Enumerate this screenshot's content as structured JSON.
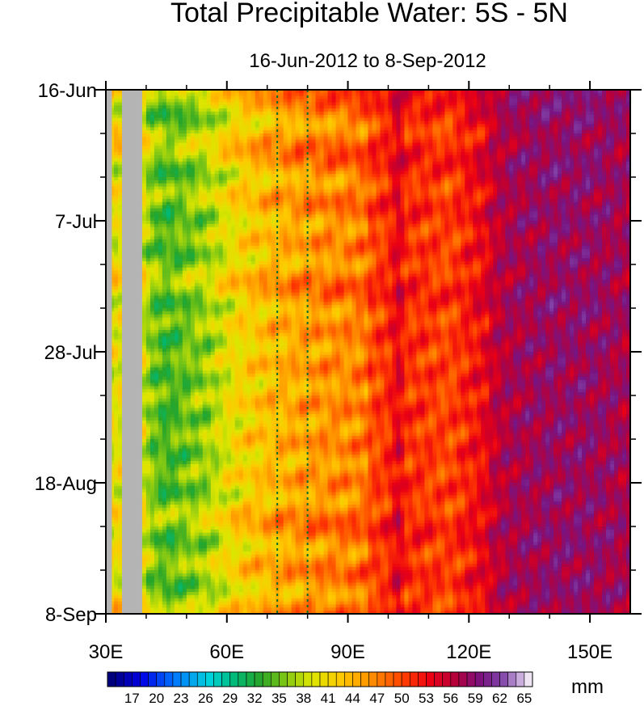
{
  "chart_data": {
    "type": "heatmap",
    "title": "Total Precipitable Water: 5S - 5N",
    "subtitle": "16-Jun-2012 to 8-Sep-2012",
    "x_axis": {
      "range": [
        30,
        160
      ],
      "ticks": [
        30,
        60,
        90,
        120,
        150
      ],
      "tick_labels": [
        "30E",
        "60E",
        "90E",
        "120E",
        "150E"
      ],
      "minor_ticks": [
        40,
        50,
        70,
        80,
        100,
        110,
        130,
        140
      ]
    },
    "y_axis": {
      "range_days": [
        0,
        84
      ],
      "tick_days": [
        0,
        21,
        42,
        63,
        84
      ],
      "tick_labels": [
        "16-Jun",
        "7-Jul",
        "28-Jul",
        "18-Aug",
        "8-Sep"
      ],
      "reversed": true
    },
    "reference_lines_lon": [
      72.5,
      80
    ],
    "land_mask_lon": [
      [
        30,
        31.5
      ],
      [
        34,
        39
      ]
    ],
    "colorbar": {
      "unit_label": "mm",
      "levels_min": 15,
      "levels_step": 1,
      "levels_count": 52,
      "tick_labels": [
        "17",
        "20",
        "23",
        "26",
        "29",
        "32",
        "35",
        "38",
        "41",
        "44",
        "47",
        "50",
        "53",
        "56",
        "59",
        "62",
        "65"
      ]
    },
    "pattern": {
      "lon_profile": [
        [
          30,
          45
        ],
        [
          39,
          45
        ],
        [
          41,
          41
        ],
        [
          45,
          39
        ],
        [
          55,
          42
        ],
        [
          62,
          46
        ],
        [
          72,
          49
        ],
        [
          82,
          51
        ],
        [
          92,
          52
        ],
        [
          100,
          54
        ],
        [
          103,
          58
        ],
        [
          104,
          54
        ],
        [
          108,
          54
        ],
        [
          115,
          53
        ],
        [
          120,
          55
        ],
        [
          125,
          57
        ],
        [
          130,
          59
        ],
        [
          140,
          60
        ],
        [
          150,
          60
        ],
        [
          160,
          59
        ]
      ],
      "dry_event_days": [
        4,
        13,
        20,
        26,
        34,
        40,
        46,
        52,
        58,
        64,
        72,
        79
      ]
    }
  }
}
